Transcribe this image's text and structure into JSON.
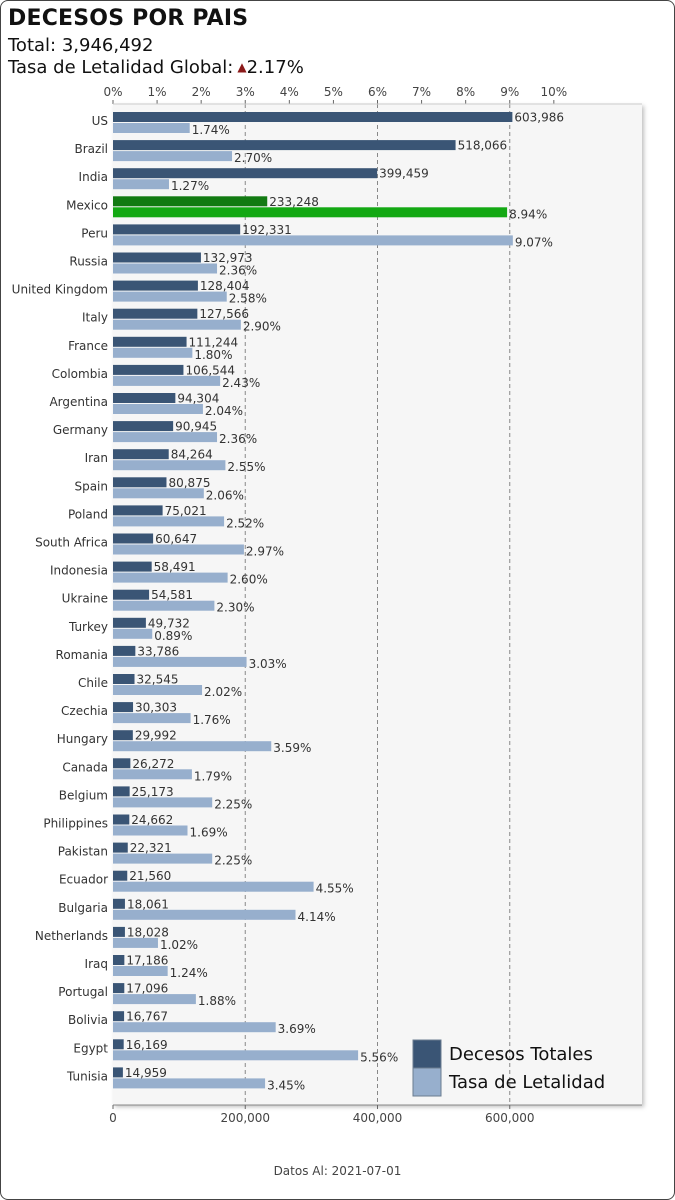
{
  "header": {
    "title": "DECESOS POR PAIS",
    "total_text": "Total: 3,946,492",
    "rate_label": "Tasa de Letalidad Global:",
    "rate_value": "2.17%"
  },
  "footer": {
    "text": "Datos Al: 2021-07-01"
  },
  "colors": {
    "deaths": "#3a5575",
    "rate": "#97afcd",
    "highlight_deaths": "#127a12",
    "highlight_rate": "#13a813",
    "plot_bg": "#f6f6f6",
    "grid": "#888888",
    "triangle": "#8b1a1a"
  },
  "chart_data": {
    "type": "bar",
    "orientation": "horizontal",
    "highlight": "Mexico",
    "categories": [
      "US",
      "Brazil",
      "India",
      "Mexico",
      "Peru",
      "Russia",
      "United Kingdom",
      "Italy",
      "France",
      "Colombia",
      "Argentina",
      "Germany",
      "Iran",
      "Spain",
      "Poland",
      "South Africa",
      "Indonesia",
      "Ukraine",
      "Turkey",
      "Romania",
      "Chile",
      "Czechia",
      "Hungary",
      "Canada",
      "Belgium",
      "Philippines",
      "Pakistan",
      "Ecuador",
      "Bulgaria",
      "Netherlands",
      "Iraq",
      "Portugal",
      "Bolivia",
      "Egypt",
      "Tunisia"
    ],
    "series": [
      {
        "name": "Decesos Totales",
        "axis": "bottom",
        "values": [
          603986,
          518066,
          399459,
          233248,
          192331,
          132973,
          128404,
          127566,
          111244,
          106544,
          94304,
          90945,
          84264,
          80875,
          75021,
          60647,
          58491,
          54581,
          49732,
          33786,
          32545,
          30303,
          29992,
          26272,
          25173,
          24662,
          22321,
          21560,
          18061,
          18028,
          17186,
          17096,
          16767,
          16169,
          14959
        ],
        "labels": [
          "603,986",
          "518,066",
          "399,459",
          "233,248",
          "192,331",
          "132,973",
          "128,404",
          "127,566",
          "111,244",
          "106,544",
          "94,304",
          "90,945",
          "84,264",
          "80,875",
          "75,021",
          "60,647",
          "58,491",
          "54,581",
          "49,732",
          "33,786",
          "32,545",
          "30,303",
          "29,992",
          "26,272",
          "25,173",
          "24,662",
          "22,321",
          "21,560",
          "18,061",
          "18,028",
          "17,186",
          "17,096",
          "16,767",
          "16,169",
          "14,959"
        ]
      },
      {
        "name": "Tasa de Letalidad",
        "axis": "top",
        "values": [
          1.74,
          2.7,
          1.27,
          8.94,
          9.07,
          2.36,
          2.58,
          2.9,
          1.8,
          2.43,
          2.04,
          2.36,
          2.55,
          2.06,
          2.52,
          2.97,
          2.6,
          2.3,
          0.89,
          3.03,
          2.02,
          1.76,
          3.59,
          1.79,
          2.25,
          1.69,
          2.25,
          4.55,
          4.14,
          1.02,
          1.24,
          1.88,
          3.69,
          5.56,
          3.45
        ],
        "labels": [
          "1.74%",
          "2.70%",
          "1.27%",
          "8.94%",
          "9.07%",
          "2.36%",
          "2.58%",
          "2.90%",
          "1.80%",
          "2.43%",
          "2.04%",
          "2.36%",
          "2.55%",
          "2.06%",
          "2.52%",
          "2.97%",
          "2.60%",
          "2.30%",
          "0.89%",
          "3.03%",
          "2.02%",
          "1.76%",
          "3.59%",
          "1.79%",
          "2.25%",
          "1.69%",
          "2.25%",
          "4.55%",
          "4.14%",
          "1.02%",
          "1.24%",
          "1.88%",
          "3.69%",
          "5.56%",
          "3.45%"
        ]
      }
    ],
    "top_axis": {
      "range": [
        0,
        10
      ],
      "ticks": [
        "0%",
        "1%",
        "2%",
        "3%",
        "4%",
        "5%",
        "6%",
        "7%",
        "8%",
        "9%",
        "10%"
      ]
    },
    "bottom_axis": {
      "range": [
        0,
        800000
      ],
      "ticks": [
        "0",
        "200,000",
        "400,000",
        "600,000"
      ],
      "tick_values": [
        0,
        200000,
        400000,
        600000
      ]
    },
    "grid": "dashed vertical at 200,000 / 400,000 / 600,000",
    "legend": {
      "placement": "bottom-right",
      "items": [
        "Decesos Totales",
        "Tasa de Letalidad"
      ]
    }
  }
}
